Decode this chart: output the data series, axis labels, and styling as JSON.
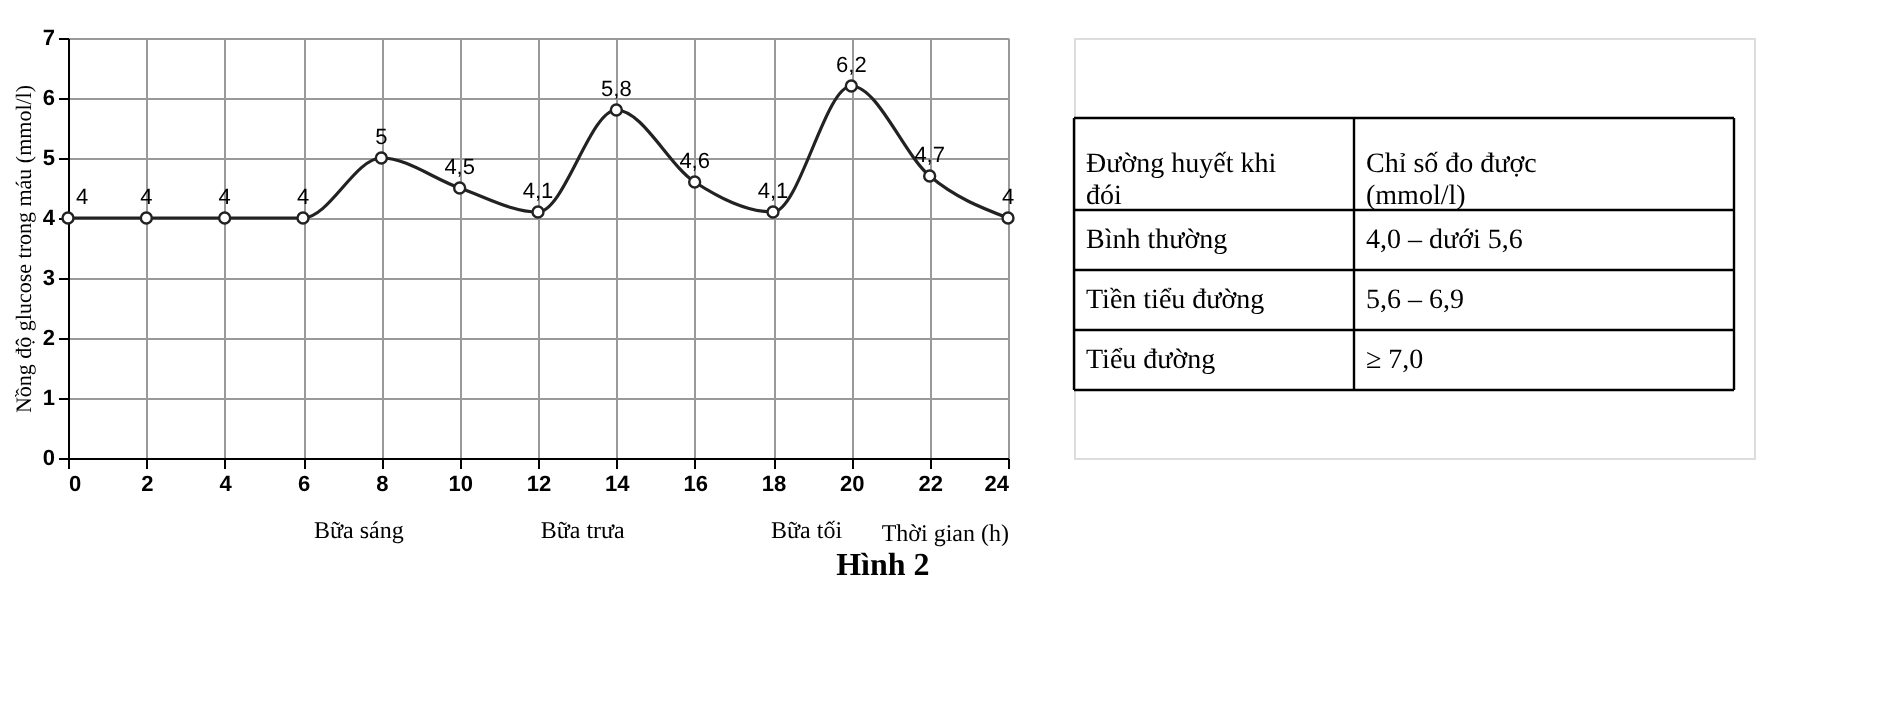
{
  "chart_data": [
    {
      "type": "line",
      "title": "Hình 2",
      "xlabel": "Thời gian (h)",
      "ylabel": "Nồng độ glucose trong máu (mmol/l)",
      "x": [
        0,
        2,
        4,
        6,
        8,
        10,
        12,
        14,
        16,
        18,
        20,
        22,
        24
      ],
      "series": [
        {
          "color": "#222222",
          "values": [
            4,
            4,
            4,
            4,
            5,
            4.5,
            4.1,
            5.8,
            4.6,
            4.1,
            6.2,
            4.7,
            4
          ],
          "value_labels": [
            "4",
            "4",
            "4",
            "4",
            "5",
            "4,5",
            "4,1",
            "5,8",
            "4,6",
            "4,1",
            "6,2",
            "4,7",
            "4"
          ]
        }
      ],
      "xlim": [
        0,
        24
      ],
      "ylim": [
        0,
        7
      ],
      "xticks": [
        0,
        2,
        4,
        6,
        8,
        10,
        12,
        14,
        16,
        18,
        20,
        22,
        24
      ],
      "yticks": [
        0,
        1,
        2,
        3,
        4,
        5,
        6,
        7
      ],
      "grid": true,
      "marker": "circle",
      "annotations": [
        "Bữa sáng",
        "Bữa trưa",
        "Bữa tối"
      ]
    },
    {
      "type": "other",
      "cell_labels": [
        [
          "Đường huyết khi đói",
          "Chỉ số đo được (mmol/l)"
        ],
        [
          "Bình thường",
          "4,0 – dưới 5,6"
        ],
        [
          "Tiền tiểu đường",
          "5,6 – 6,9"
        ],
        [
          "Tiểu đường",
          "≥ 7,0"
        ]
      ]
    }
  ]
}
